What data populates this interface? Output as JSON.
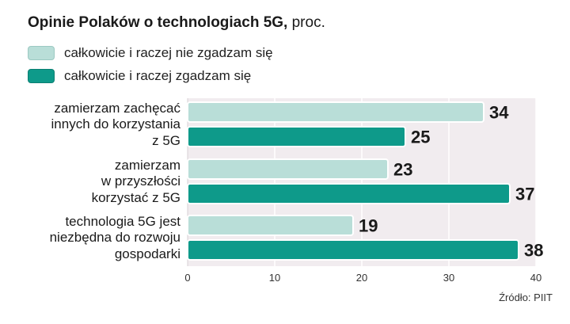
{
  "chart_data": {
    "type": "bar",
    "orientation": "horizontal",
    "title": "Opinie Polaków o technologiach 5G,",
    "title_unit": "proc.",
    "categories": [
      [
        "zamierzam zachęcać",
        "innych do korzystania",
        "z 5G"
      ],
      [
        "zamierzam",
        "w przyszłości",
        "korzystać z 5G"
      ],
      [
        "technologia 5G jest",
        "niezbędna do rozwoju",
        "gospodarki"
      ]
    ],
    "series": [
      {
        "name": "całkowicie i raczej nie zgadzam się",
        "color": "#b9ded8",
        "values": [
          34,
          23,
          19
        ]
      },
      {
        "name": "całkowicie i raczej zgadzam się",
        "color": "#0e9a8a",
        "values": [
          25,
          37,
          38
        ]
      }
    ],
    "xlim": [
      0,
      40
    ],
    "xticks": [
      0,
      10,
      20,
      30,
      40
    ],
    "grid": true,
    "legend_position": "top-left",
    "source": "Źródło: PIIT"
  }
}
